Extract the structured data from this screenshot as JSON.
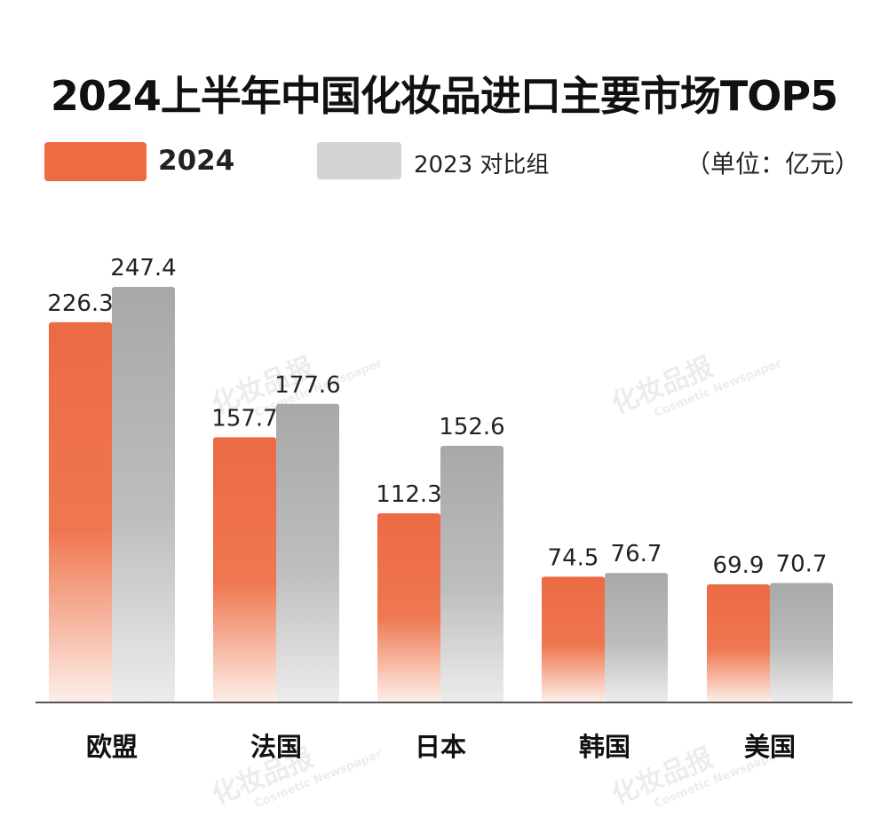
{
  "title": "2024上半年中国化妆品进口主要市场TOP5",
  "legend": {
    "series_a_label": "2024",
    "series_b_label": "2023  对比组"
  },
  "unit": "（单位：亿元）",
  "watermark": {
    "main": "化妆品报",
    "sub": "Cosmetic Newspaper"
  },
  "colors": {
    "series_a": "#ee6a43",
    "series_b": "#a9a9a9",
    "axis": "#555555"
  },
  "chart_data": {
    "type": "bar",
    "categories": [
      "欧盟",
      "法国",
      "日本",
      "韩国",
      "美国"
    ],
    "series": [
      {
        "name": "2024",
        "values": [
          226.3,
          157.7,
          112.3,
          74.5,
          69.9
        ]
      },
      {
        "name": "2023",
        "values": [
          247.4,
          177.6,
          152.6,
          76.7,
          70.7
        ]
      }
    ],
    "ylim": [
      0,
      260
    ],
    "grid": false,
    "legend_position": "top-left"
  }
}
